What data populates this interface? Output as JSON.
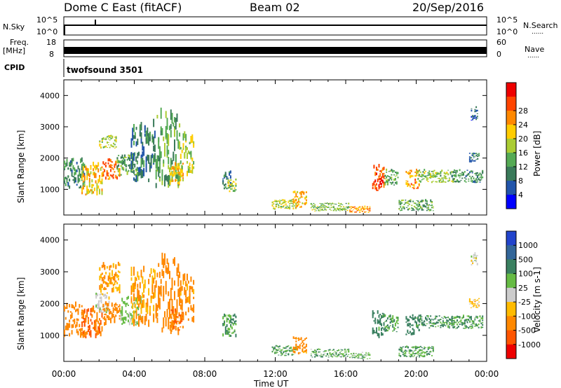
{
  "header": {
    "station": "Dome C East (fitACF)",
    "beam": "Beam 02",
    "date": "20/Sep/2016"
  },
  "top_panels": {
    "nsky_label": "N.Sky",
    "nsearch_label": "N.Search",
    "freq_label_top": "Freq.",
    "freq_label_unit": "[MHz]",
    "nave_label": "Nave",
    "cpid_label": "CPID",
    "cpid_value": "twofsound 3501",
    "dotted_legend": "......",
    "nsky_ticks": [
      "10^5",
      "10^0"
    ],
    "nsearch_ticks": [
      "10^5",
      "10^0"
    ],
    "freq_ticks": [
      "18",
      "8"
    ],
    "nave_ticks": [
      "60",
      "0"
    ]
  },
  "axes": {
    "xlabel": "Time UT",
    "ylabel": "Slant Range [km]",
    "x_ticks": [
      "00:00",
      "04:00",
      "08:00",
      "12:00",
      "16:00",
      "20:00",
      "00:00"
    ],
    "y_ticks": [
      "1000",
      "2000",
      "3000",
      "4000"
    ]
  },
  "colorbars": {
    "power": {
      "label": "Power [dB]",
      "ticks": [
        "4",
        "8",
        "12",
        "16",
        "20",
        "24",
        "28"
      ],
      "colors": [
        "#0000ff",
        "#2255aa",
        "#3a7a5a",
        "#55aa55",
        "#aacc33",
        "#ffcc00",
        "#ff8800",
        "#ff4400",
        "#ee0000"
      ]
    },
    "velocity": {
      "label": "Velocity [m s-1]",
      "ticks": [
        "1000",
        "500",
        "100",
        "25",
        "-25",
        "-100",
        "-500",
        "-1000"
      ],
      "colors": [
        "#2244cc",
        "#336699",
        "#3a8060",
        "#66bb44",
        "#cccccc",
        "#ffbb00",
        "#ff8800",
        "#ff5500",
        "#ee0000"
      ]
    }
  },
  "chart_data": [
    {
      "type": "heatmap",
      "title": "Power",
      "xlabel": "Time UT",
      "ylabel": "Slant Range [km]",
      "xlim": [
        0,
        24
      ],
      "ylim": [
        180,
        4500
      ],
      "colorbar": "Power [dB]",
      "regions": [
        {
          "t": [
            0.0,
            1.2
          ],
          "r": [
            1000,
            1900
          ],
          "v": 10
        },
        {
          "t": [
            1.0,
            2.2
          ],
          "r": [
            800,
            1800
          ],
          "v": 20
        },
        {
          "t": [
            2.2,
            3.2
          ],
          "r": [
            1300,
            1900
          ],
          "v": 24
        },
        {
          "t": [
            2.0,
            3.0
          ],
          "r": [
            2300,
            2700
          ],
          "v": 16
        },
        {
          "t": [
            3.0,
            4.2
          ],
          "r": [
            1400,
            2100
          ],
          "v": 12
        },
        {
          "t": [
            3.8,
            5.2
          ],
          "r": [
            1200,
            3000
          ],
          "v": 8
        },
        {
          "t": [
            5.2,
            6.6
          ],
          "r": [
            1000,
            3300
          ],
          "v": 12
        },
        {
          "t": [
            6.0,
            6.8
          ],
          "r": [
            1100,
            1800
          ],
          "v": 20
        },
        {
          "t": [
            6.6,
            7.4
          ],
          "r": [
            1400,
            2800
          ],
          "v": 16
        },
        {
          "t": [
            9.0,
            9.5
          ],
          "r": [
            1000,
            1600
          ],
          "v": 8
        },
        {
          "t": [
            9.3,
            9.8
          ],
          "r": [
            900,
            1300
          ],
          "v": 16
        },
        {
          "t": [
            11.8,
            13.2
          ],
          "r": [
            350,
            650
          ],
          "v": 16
        },
        {
          "t": [
            13.0,
            13.8
          ],
          "r": [
            400,
            900
          ],
          "v": 20
        },
        {
          "t": [
            14.0,
            16.2
          ],
          "r": [
            300,
            550
          ],
          "v": 14
        },
        {
          "t": [
            16.2,
            17.4
          ],
          "r": [
            250,
            450
          ],
          "v": 22
        },
        {
          "t": [
            17.5,
            18.2
          ],
          "r": [
            900,
            1700
          ],
          "v": 26
        },
        {
          "t": [
            18.2,
            19.0
          ],
          "r": [
            1100,
            1600
          ],
          "v": 12
        },
        {
          "t": [
            19.4,
            20.2
          ],
          "r": [
            1000,
            1600
          ],
          "v": 22
        },
        {
          "t": [
            19.0,
            21.0
          ],
          "r": [
            300,
            650
          ],
          "v": 12
        },
        {
          "t": [
            20.0,
            22.2
          ],
          "r": [
            1200,
            1600
          ],
          "v": 14
        },
        {
          "t": [
            22.0,
            23.8
          ],
          "r": [
            1200,
            1600
          ],
          "v": 10
        },
        {
          "t": [
            23.0,
            23.6
          ],
          "r": [
            1850,
            2150
          ],
          "v": 8
        },
        {
          "t": [
            23.1,
            23.5
          ],
          "r": [
            3200,
            3600
          ],
          "v": 6
        }
      ]
    },
    {
      "type": "heatmap",
      "title": "Velocity",
      "xlabel": "Time UT",
      "ylabel": "Slant Range [km]",
      "xlim": [
        0,
        24
      ],
      "ylim": [
        180,
        4500
      ],
      "colorbar": "Velocity [m s-1]",
      "regions": [
        {
          "t": [
            0.0,
            1.2
          ],
          "r": [
            900,
            1900
          ],
          "v": -300
        },
        {
          "t": [
            1.0,
            2.2
          ],
          "r": [
            800,
            1800
          ],
          "v": -500
        },
        {
          "t": [
            1.8,
            2.6
          ],
          "r": [
            1700,
            2300
          ],
          "v": 0
        },
        {
          "t": [
            2.2,
            3.2
          ],
          "r": [
            1300,
            2000
          ],
          "v": -300
        },
        {
          "t": [
            2.0,
            3.2
          ],
          "r": [
            2300,
            3200
          ],
          "v": -100
        },
        {
          "t": [
            3.2,
            4.4
          ],
          "r": [
            1300,
            2200
          ],
          "v": 50
        },
        {
          "t": [
            3.8,
            5.2
          ],
          "r": [
            1200,
            3000
          ],
          "v": -100
        },
        {
          "t": [
            5.2,
            6.6
          ],
          "r": [
            1000,
            3300
          ],
          "v": -300
        },
        {
          "t": [
            6.0,
            6.8
          ],
          "r": [
            1100,
            1800
          ],
          "v": -500
        },
        {
          "t": [
            6.6,
            7.4
          ],
          "r": [
            1400,
            2800
          ],
          "v": -200
        },
        {
          "t": [
            9.0,
            9.8
          ],
          "r": [
            900,
            1600
          ],
          "v": 100
        },
        {
          "t": [
            11.8,
            13.2
          ],
          "r": [
            350,
            650
          ],
          "v": 100
        },
        {
          "t": [
            13.0,
            13.8
          ],
          "r": [
            400,
            900
          ],
          "v": -200
        },
        {
          "t": [
            14.0,
            16.2
          ],
          "r": [
            300,
            550
          ],
          "v": 80
        },
        {
          "t": [
            16.2,
            17.4
          ],
          "r": [
            250,
            450
          ],
          "v": 60
        },
        {
          "t": [
            17.5,
            18.2
          ],
          "r": [
            900,
            1700
          ],
          "v": 200
        },
        {
          "t": [
            18.2,
            19.0
          ],
          "r": [
            1100,
            1600
          ],
          "v": 100
        },
        {
          "t": [
            19.4,
            20.2
          ],
          "r": [
            1000,
            1600
          ],
          "v": 300
        },
        {
          "t": [
            19.0,
            21.0
          ],
          "r": [
            300,
            650
          ],
          "v": 100
        },
        {
          "t": [
            20.0,
            22.2
          ],
          "r": [
            1200,
            1600
          ],
          "v": 150
        },
        {
          "t": [
            22.0,
            23.8
          ],
          "r": [
            1200,
            1600
          ],
          "v": 100
        },
        {
          "t": [
            23.0,
            23.6
          ],
          "r": [
            1850,
            2150
          ],
          "v": -60
        },
        {
          "t": [
            23.1,
            23.5
          ],
          "r": [
            3200,
            3600
          ],
          "v": 0
        }
      ]
    }
  ]
}
